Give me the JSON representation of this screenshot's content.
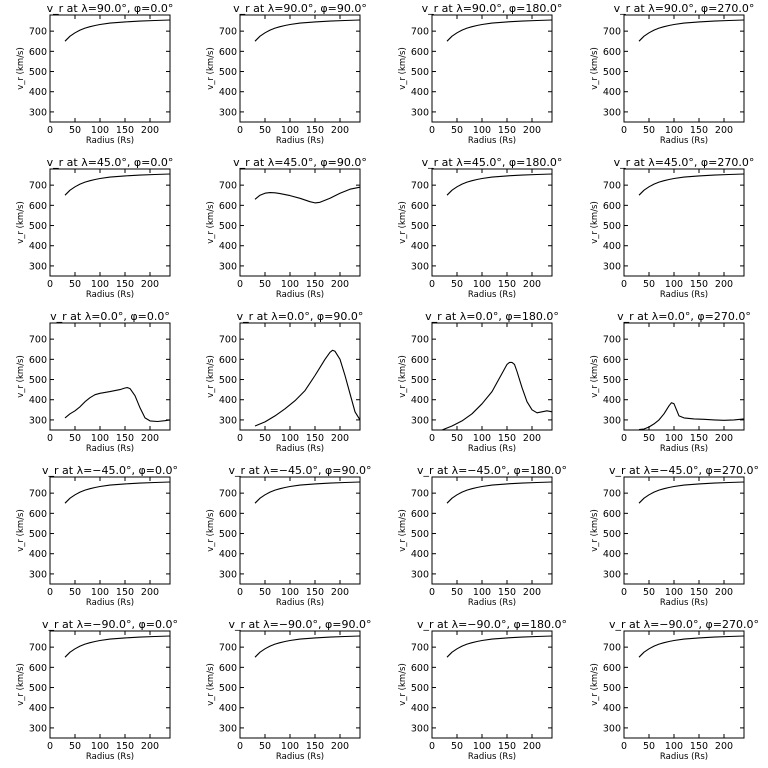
{
  "chart_data": [
    {
      "type": "line",
      "title": "v_r at λ=90.0°, φ=0.0°",
      "xlabel": "Radius (Rs)",
      "ylabel": "v_r (km/s)",
      "xlim": [
        0,
        240
      ],
      "ylim": [
        250,
        780
      ],
      "xticks": [
        0,
        50,
        100,
        150,
        200
      ],
      "yticks": [
        300,
        400,
        500,
        600,
        700
      ],
      "series": [
        {
          "x": [
            30,
            40,
            50,
            60,
            70,
            80,
            90,
            100,
            120,
            150,
            180,
            210,
            240
          ],
          "y": [
            650,
            675,
            692,
            705,
            715,
            722,
            728,
            733,
            740,
            746,
            750,
            753,
            755
          ]
        }
      ]
    },
    {
      "type": "line",
      "title": "v_r at λ=90.0°, φ=90.0°",
      "xlabel": "Radius (Rs)",
      "ylabel": "v_r (km/s)",
      "xlim": [
        0,
        240
      ],
      "ylim": [
        250,
        780
      ],
      "xticks": [
        0,
        50,
        100,
        150,
        200
      ],
      "yticks": [
        300,
        400,
        500,
        600,
        700
      ],
      "series": [
        {
          "x": [
            30,
            40,
            50,
            60,
            70,
            80,
            90,
            100,
            120,
            150,
            180,
            210,
            240
          ],
          "y": [
            650,
            675,
            692,
            705,
            715,
            722,
            728,
            733,
            740,
            746,
            750,
            753,
            755
          ]
        }
      ]
    },
    {
      "type": "line",
      "title": "v_r at λ=90.0°, φ=180.0°",
      "xlabel": "Radius (Rs)",
      "ylabel": "v_r (km/s)",
      "xlim": [
        0,
        240
      ],
      "ylim": [
        250,
        780
      ],
      "xticks": [
        0,
        50,
        100,
        150,
        200
      ],
      "yticks": [
        300,
        400,
        500,
        600,
        700
      ],
      "series": [
        {
          "x": [
            30,
            40,
            50,
            60,
            70,
            80,
            90,
            100,
            120,
            150,
            180,
            210,
            240
          ],
          "y": [
            650,
            675,
            692,
            705,
            715,
            722,
            728,
            733,
            740,
            746,
            750,
            753,
            755
          ]
        }
      ]
    },
    {
      "type": "line",
      "title": "v_r at λ=90.0°, φ=270.0°",
      "xlabel": "Radius (Rs)",
      "ylabel": "v_r (km/s)",
      "xlim": [
        0,
        240
      ],
      "ylim": [
        250,
        780
      ],
      "xticks": [
        0,
        50,
        100,
        150,
        200
      ],
      "yticks": [
        300,
        400,
        500,
        600,
        700
      ],
      "series": [
        {
          "x": [
            30,
            40,
            50,
            60,
            70,
            80,
            90,
            100,
            120,
            150,
            180,
            210,
            240
          ],
          "y": [
            650,
            675,
            692,
            705,
            715,
            722,
            728,
            733,
            740,
            746,
            750,
            753,
            755
          ]
        }
      ]
    },
    {
      "type": "line",
      "title": "v_r at λ=45.0°, φ=0.0°",
      "xlabel": "Radius (Rs)",
      "ylabel": "v_r (km/s)",
      "xlim": [
        0,
        240
      ],
      "ylim": [
        250,
        780
      ],
      "xticks": [
        0,
        50,
        100,
        150,
        200
      ],
      "yticks": [
        300,
        400,
        500,
        600,
        700
      ],
      "series": [
        {
          "x": [
            30,
            40,
            50,
            60,
            70,
            80,
            90,
            100,
            120,
            150,
            180,
            210,
            240
          ],
          "y": [
            650,
            675,
            692,
            705,
            715,
            722,
            728,
            733,
            740,
            746,
            750,
            753,
            755
          ]
        }
      ]
    },
    {
      "type": "line",
      "title": "v_r at λ=45.0°, φ=90.0°",
      "xlabel": "Radius (Rs)",
      "ylabel": "v_r (km/s)",
      "xlim": [
        0,
        240
      ],
      "ylim": [
        250,
        780
      ],
      "xticks": [
        0,
        50,
        100,
        150,
        200
      ],
      "yticks": [
        300,
        400,
        500,
        600,
        700
      ],
      "series": [
        {
          "x": [
            30,
            40,
            50,
            60,
            70,
            80,
            100,
            120,
            140,
            150,
            160,
            180,
            200,
            220,
            240
          ],
          "y": [
            630,
            650,
            660,
            663,
            662,
            658,
            648,
            635,
            618,
            612,
            615,
            635,
            660,
            680,
            690
          ]
        }
      ]
    },
    {
      "type": "line",
      "title": "v_r at λ=45.0°, φ=180.0°",
      "xlabel": "Radius (Rs)",
      "ylabel": "v_r (km/s)",
      "xlim": [
        0,
        240
      ],
      "ylim": [
        250,
        780
      ],
      "xticks": [
        0,
        50,
        100,
        150,
        200
      ],
      "yticks": [
        300,
        400,
        500,
        600,
        700
      ],
      "series": [
        {
          "x": [
            30,
            40,
            50,
            60,
            70,
            80,
            90,
            100,
            120,
            150,
            180,
            210,
            240
          ],
          "y": [
            650,
            675,
            692,
            705,
            715,
            722,
            728,
            733,
            740,
            746,
            750,
            753,
            755
          ]
        }
      ]
    },
    {
      "type": "line",
      "title": "v_r at λ=45.0°, φ=270.0°",
      "xlabel": "Radius (Rs)",
      "ylabel": "v_r (km/s)",
      "xlim": [
        0,
        240
      ],
      "ylim": [
        250,
        780
      ],
      "xticks": [
        0,
        50,
        100,
        150,
        200
      ],
      "yticks": [
        300,
        400,
        500,
        600,
        700
      ],
      "series": [
        {
          "x": [
            30,
            40,
            50,
            60,
            70,
            80,
            90,
            100,
            120,
            150,
            180,
            210,
            240
          ],
          "y": [
            650,
            675,
            692,
            705,
            715,
            722,
            728,
            733,
            740,
            746,
            750,
            753,
            755
          ]
        }
      ]
    },
    {
      "type": "line",
      "title": "v_r at λ=0.0°, φ=0.0°",
      "xlabel": "Radius (Rs)",
      "ylabel": "v_r (km/s)",
      "xlim": [
        0,
        240
      ],
      "ylim": [
        250,
        780
      ],
      "xticks": [
        0,
        50,
        100,
        150,
        200
      ],
      "yticks": [
        300,
        400,
        500,
        600,
        700
      ],
      "series": [
        {
          "x": [
            30,
            40,
            50,
            60,
            70,
            80,
            90,
            100,
            110,
            120,
            130,
            140,
            150,
            155,
            160,
            170,
            180,
            190,
            200,
            215,
            230,
            240
          ],
          "y": [
            310,
            330,
            345,
            365,
            390,
            410,
            425,
            432,
            436,
            440,
            445,
            450,
            458,
            460,
            455,
            420,
            360,
            310,
            295,
            292,
            296,
            300
          ]
        }
      ]
    },
    {
      "type": "line",
      "title": "v_r at λ=0.0°, φ=90.0°",
      "xlabel": "Radius (Rs)",
      "ylabel": "v_r (km/s)",
      "xlim": [
        0,
        240
      ],
      "ylim": [
        250,
        780
      ],
      "xticks": [
        0,
        50,
        100,
        150,
        200
      ],
      "yticks": [
        300,
        400,
        500,
        600,
        700
      ],
      "series": [
        {
          "x": [
            30,
            50,
            70,
            90,
            110,
            130,
            150,
            160,
            170,
            180,
            185,
            190,
            200,
            210,
            220,
            230,
            240
          ],
          "y": [
            270,
            290,
            320,
            355,
            395,
            445,
            520,
            560,
            600,
            635,
            645,
            640,
            600,
            520,
            430,
            340,
            300
          ]
        }
      ]
    },
    {
      "type": "line",
      "title": "v_r at λ=0.0°, φ=180.0°",
      "xlabel": "Radius (Rs)",
      "ylabel": "v_r (km/s)",
      "xlim": [
        0,
        240
      ],
      "ylim": [
        250,
        780
      ],
      "xticks": [
        0,
        50,
        100,
        150,
        200
      ],
      "yticks": [
        300,
        400,
        500,
        600,
        700
      ],
      "series": [
        {
          "x": [
            20,
            40,
            60,
            80,
            100,
            120,
            140,
            150,
            155,
            160,
            165,
            170,
            180,
            190,
            200,
            210,
            220,
            230,
            240
          ],
          "y": [
            250,
            270,
            295,
            330,
            380,
            440,
            530,
            575,
            585,
            585,
            575,
            540,
            460,
            390,
            350,
            335,
            340,
            345,
            340
          ]
        }
      ]
    },
    {
      "type": "line",
      "title": "v_r at λ=0.0°, φ=270.0°",
      "xlabel": "Radius (Rs)",
      "ylabel": "v_r (km/s)",
      "xlim": [
        0,
        240
      ],
      "ylim": [
        250,
        780
      ],
      "xticks": [
        0,
        50,
        100,
        150,
        200
      ],
      "yticks": [
        300,
        400,
        500,
        600,
        700
      ],
      "series": [
        {
          "x": [
            30,
            40,
            50,
            60,
            70,
            80,
            90,
            95,
            100,
            105,
            110,
            120,
            140,
            160,
            180,
            200,
            220,
            240
          ],
          "y": [
            252,
            255,
            265,
            280,
            300,
            330,
            370,
            385,
            380,
            350,
            320,
            310,
            305,
            303,
            300,
            298,
            300,
            305
          ]
        }
      ]
    },
    {
      "type": "line",
      "title": "v_r at λ=−45.0°, φ=0.0°",
      "xlabel": "Radius (Rs)",
      "ylabel": "v_r (km/s)",
      "xlim": [
        0,
        240
      ],
      "ylim": [
        250,
        780
      ],
      "xticks": [
        0,
        50,
        100,
        150,
        200
      ],
      "yticks": [
        300,
        400,
        500,
        600,
        700
      ],
      "series": [
        {
          "x": [
            30,
            40,
            50,
            60,
            70,
            80,
            90,
            100,
            120,
            150,
            180,
            210,
            240
          ],
          "y": [
            650,
            675,
            692,
            705,
            715,
            722,
            728,
            733,
            740,
            746,
            750,
            753,
            755
          ]
        }
      ]
    },
    {
      "type": "line",
      "title": "v_r at λ=−45.0°, φ=90.0°",
      "xlabel": "Radius (Rs)",
      "ylabel": "v_r (km/s)",
      "xlim": [
        0,
        240
      ],
      "ylim": [
        250,
        780
      ],
      "xticks": [
        0,
        50,
        100,
        150,
        200
      ],
      "yticks": [
        300,
        400,
        500,
        600,
        700
      ],
      "series": [
        {
          "x": [
            30,
            40,
            50,
            60,
            70,
            80,
            90,
            100,
            120,
            150,
            180,
            210,
            240
          ],
          "y": [
            650,
            675,
            692,
            705,
            715,
            722,
            728,
            733,
            740,
            746,
            750,
            753,
            755
          ]
        }
      ]
    },
    {
      "type": "line",
      "title": "v_r at λ=−45.0°, φ=180.0°",
      "xlabel": "Radius (Rs)",
      "ylabel": "v_r (km/s)",
      "xlim": [
        0,
        240
      ],
      "ylim": [
        250,
        780
      ],
      "xticks": [
        0,
        50,
        100,
        150,
        200
      ],
      "yticks": [
        300,
        400,
        500,
        600,
        700
      ],
      "series": [
        {
          "x": [
            30,
            40,
            50,
            60,
            70,
            80,
            90,
            100,
            120,
            150,
            180,
            210,
            240
          ],
          "y": [
            650,
            675,
            692,
            705,
            715,
            722,
            728,
            733,
            740,
            746,
            750,
            753,
            755
          ]
        }
      ]
    },
    {
      "type": "line",
      "title": "v_r at λ=−45.0°, φ=270.0°",
      "xlabel": "Radius (Rs)",
      "ylabel": "v_r (km/s)",
      "xlim": [
        0,
        240
      ],
      "ylim": [
        250,
        780
      ],
      "xticks": [
        0,
        50,
        100,
        150,
        200
      ],
      "yticks": [
        300,
        400,
        500,
        600,
        700
      ],
      "series": [
        {
          "x": [
            30,
            40,
            50,
            60,
            70,
            80,
            90,
            100,
            120,
            150,
            180,
            210,
            240
          ],
          "y": [
            650,
            675,
            692,
            705,
            715,
            722,
            728,
            733,
            740,
            746,
            750,
            753,
            755
          ]
        }
      ]
    },
    {
      "type": "line",
      "title": "v_r at λ=−90.0°, φ=0.0°",
      "xlabel": "Radius (Rs)",
      "ylabel": "v_r (km/s)",
      "xlim": [
        0,
        240
      ],
      "ylim": [
        250,
        780
      ],
      "xticks": [
        0,
        50,
        100,
        150,
        200
      ],
      "yticks": [
        300,
        400,
        500,
        600,
        700
      ],
      "series": [
        {
          "x": [
            30,
            40,
            50,
            60,
            70,
            80,
            90,
            100,
            120,
            150,
            180,
            210,
            240
          ],
          "y": [
            650,
            675,
            692,
            705,
            715,
            722,
            728,
            733,
            740,
            746,
            750,
            753,
            755
          ]
        }
      ]
    },
    {
      "type": "line",
      "title": "v_r at λ=−90.0°, φ=90.0°",
      "xlabel": "Radius (Rs)",
      "ylabel": "v_r (km/s)",
      "xlim": [
        0,
        240
      ],
      "ylim": [
        250,
        780
      ],
      "xticks": [
        0,
        50,
        100,
        150,
        200
      ],
      "yticks": [
        300,
        400,
        500,
        600,
        700
      ],
      "series": [
        {
          "x": [
            30,
            40,
            50,
            60,
            70,
            80,
            90,
            100,
            120,
            150,
            180,
            210,
            240
          ],
          "y": [
            650,
            675,
            692,
            705,
            715,
            722,
            728,
            733,
            740,
            746,
            750,
            753,
            755
          ]
        }
      ]
    },
    {
      "type": "line",
      "title": "v_r at λ=−90.0°, φ=180.0°",
      "xlabel": "Radius (Rs)",
      "ylabel": "v_r (km/s)",
      "xlim": [
        0,
        240
      ],
      "ylim": [
        250,
        780
      ],
      "xticks": [
        0,
        50,
        100,
        150,
        200
      ],
      "yticks": [
        300,
        400,
        500,
        600,
        700
      ],
      "series": [
        {
          "x": [
            30,
            40,
            50,
            60,
            70,
            80,
            90,
            100,
            120,
            150,
            180,
            210,
            240
          ],
          "y": [
            650,
            675,
            692,
            705,
            715,
            722,
            728,
            733,
            740,
            746,
            750,
            753,
            755
          ]
        }
      ]
    },
    {
      "type": "line",
      "title": "v_r at λ=−90.0°, φ=270.0°",
      "xlabel": "Radius (Rs)",
      "ylabel": "v_r (km/s)",
      "xlim": [
        0,
        240
      ],
      "ylim": [
        250,
        780
      ],
      "xticks": [
        0,
        50,
        100,
        150,
        200
      ],
      "yticks": [
        300,
        400,
        500,
        600,
        700
      ],
      "series": [
        {
          "x": [
            30,
            40,
            50,
            60,
            70,
            80,
            90,
            100,
            120,
            150,
            180,
            210,
            240
          ],
          "y": [
            650,
            675,
            692,
            705,
            715,
            722,
            728,
            733,
            740,
            746,
            750,
            753,
            755
          ]
        }
      ]
    }
  ]
}
